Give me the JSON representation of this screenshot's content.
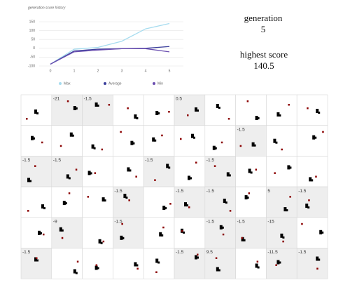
{
  "chart_data": {
    "type": "line",
    "title": "generation score history",
    "x": [
      0,
      1,
      2,
      3,
      4,
      5
    ],
    "xticks": [
      0,
      1,
      2,
      3,
      4,
      5
    ],
    "xlim": [
      0,
      5
    ],
    "ylim": [
      -100,
      150
    ],
    "yticks": [
      -100,
      -50,
      0,
      50,
      100,
      150
    ],
    "grid": true,
    "legend": "bottom",
    "series": [
      {
        "name": "Max",
        "color": "#a6dcef",
        "values": [
          -90,
          -5,
          5,
          40,
          110,
          140
        ]
      },
      {
        "name": "Average",
        "color": "#3b3f9c",
        "values": [
          -90,
          -15,
          -5,
          -2,
          0,
          10
        ]
      },
      {
        "name": "Min",
        "color": "#6b4fb0",
        "values": [
          -90,
          -20,
          -10,
          -2,
          -2,
          -20
        ]
      }
    ]
  },
  "status": {
    "generation_label": "generation",
    "generation": 5,
    "score_label": "highest score",
    "highest_score": 140.5
  },
  "grid": {
    "rows": [
      [
        null,
        -21,
        -1.5,
        null,
        null,
        0.5,
        null,
        null,
        null,
        null
      ],
      [
        null,
        null,
        null,
        null,
        null,
        null,
        null,
        -1.5,
        null,
        null
      ],
      [
        -1.5,
        -1.5,
        null,
        null,
        -1.5,
        null,
        -1.5,
        null,
        null,
        null
      ],
      [
        null,
        null,
        null,
        -1.5,
        null,
        -1.5,
        -1.5,
        null,
        5,
        -1.5
      ],
      [
        null,
        -9,
        null,
        -1.5,
        null,
        null,
        -1.5,
        -1.5,
        -15,
        null
      ],
      [
        -1.5,
        null,
        null,
        null,
        null,
        -1.5,
        9.5,
        null,
        -11.5,
        -1.5
      ]
    ]
  }
}
